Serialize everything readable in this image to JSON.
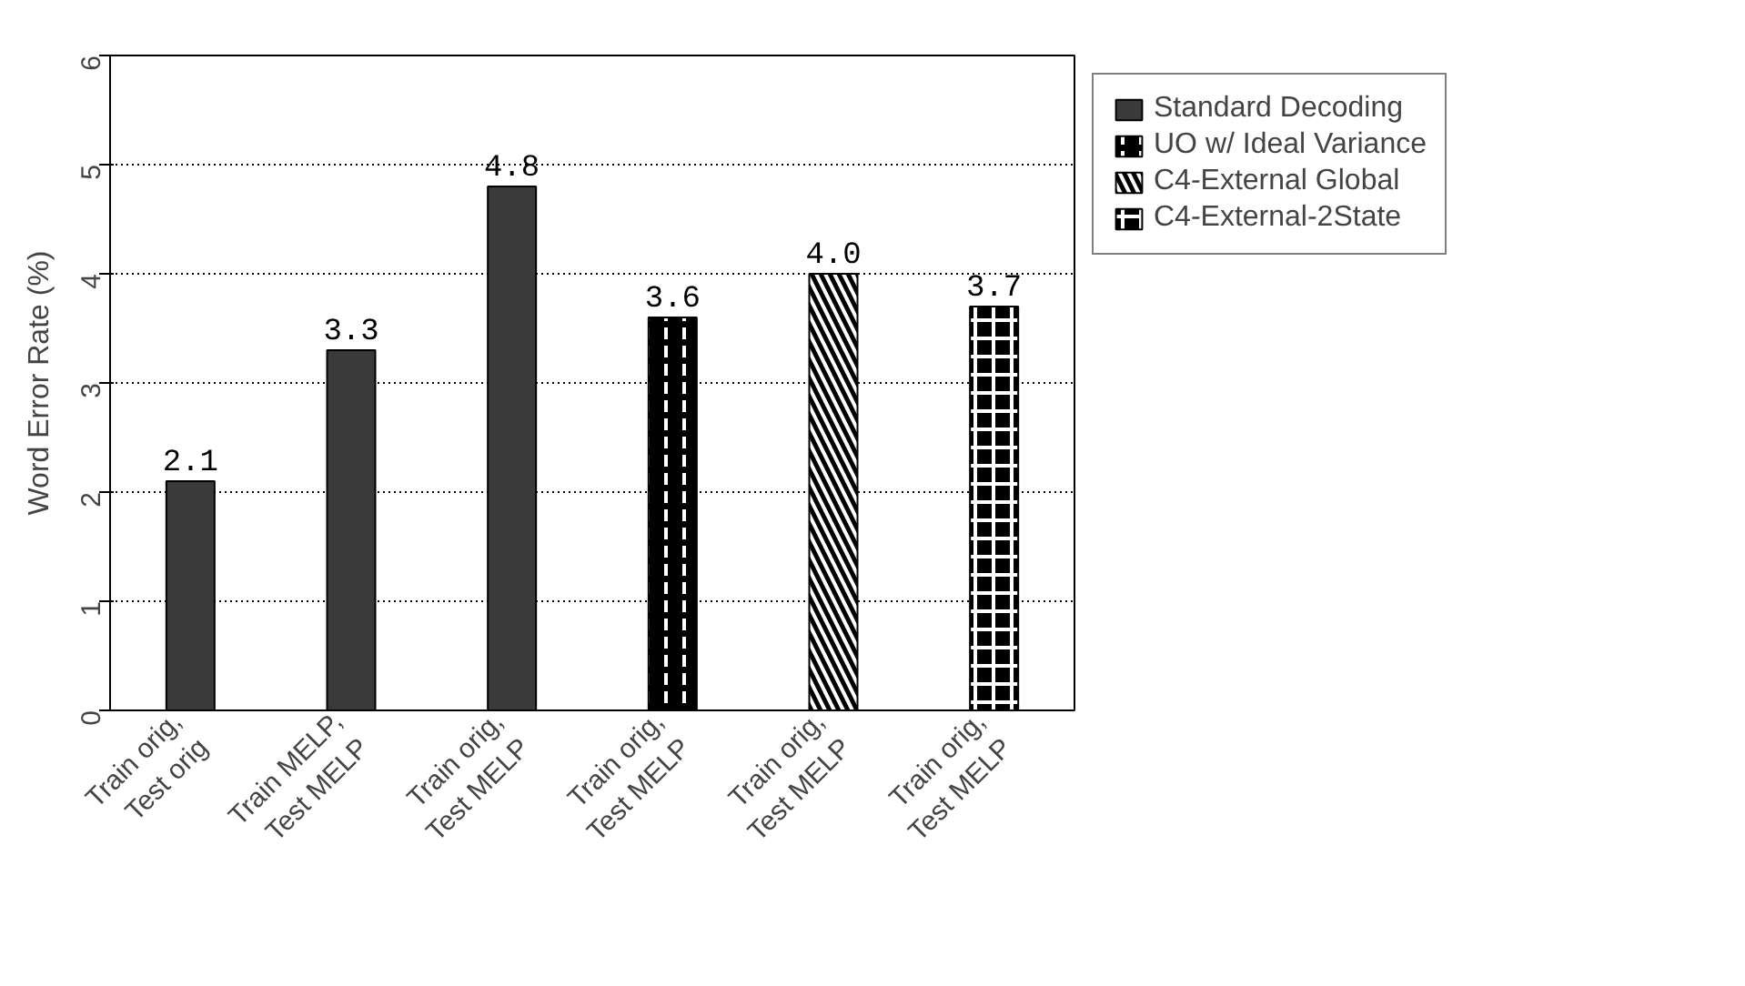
{
  "chart_data": {
    "type": "bar",
    "ylabel": "Word Error Rate (%)",
    "categories": [
      "Train orig,\nTest orig",
      "Train MELP,\nTest MELP",
      "Train orig,\nTest MELP",
      "Train orig,\nTest MELP",
      "Train orig,\nTest MELP",
      "Train orig,\nTest MELP"
    ],
    "series": [
      {
        "name": "Standard Decoding",
        "color": "#3a3a3a",
        "values": [
          2.1,
          3.3,
          4.8,
          null,
          null,
          null
        ],
        "value_labels": [
          "2.1",
          "3.3",
          "4.8",
          null,
          null,
          null
        ]
      },
      {
        "name": "UO w/ Ideal Variance",
        "color": "#000000",
        "values": [
          null,
          null,
          null,
          3.6,
          null,
          null
        ],
        "value_labels": [
          null,
          null,
          null,
          "3.6",
          null,
          null
        ]
      },
      {
        "name": "C4-External Global",
        "color": "#000000",
        "values": [
          null,
          null,
          null,
          null,
          4.0,
          null
        ],
        "value_labels": [
          null,
          null,
          null,
          null,
          "4.0",
          null
        ]
      },
      {
        "name": "C4-External-2State",
        "color": "#000000",
        "values": [
          null,
          null,
          null,
          null,
          null,
          3.7
        ],
        "value_labels": [
          null,
          null,
          null,
          null,
          null,
          "3.7"
        ]
      }
    ],
    "ylim": [
      0,
      6
    ],
    "yticks": [
      0,
      1,
      2,
      3,
      4,
      5,
      6
    ],
    "grid": "y",
    "legend": "right"
  }
}
